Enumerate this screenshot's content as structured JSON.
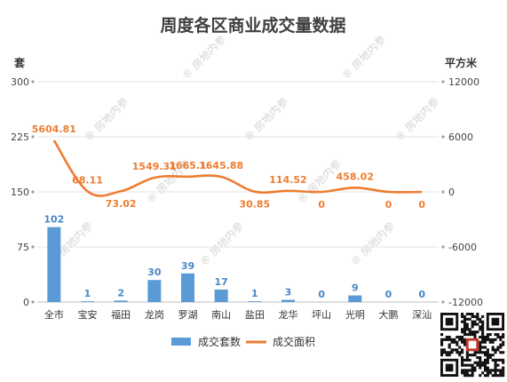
{
  "watermark": "房地内参",
  "chart_data": {
    "type": "bar+line",
    "title": "周度各区商业成交量数据",
    "categories": [
      "全市",
      "宝安",
      "福田",
      "龙岗",
      "罗湖",
      "南山",
      "盐田",
      "龙华",
      "坪山",
      "光明",
      "大鹏",
      "深汕"
    ],
    "left_axis": {
      "unit": "套",
      "ylim": [
        0,
        300
      ],
      "ticks": [
        "0",
        "75",
        "150",
        "225",
        "300"
      ]
    },
    "right_axis": {
      "unit": "平方米",
      "ylim": [
        -12000,
        12000
      ],
      "ticks": [
        "-12000",
        "-6000",
        "0",
        "6000",
        "12000"
      ]
    },
    "series": [
      {
        "name": "成交套数",
        "type": "bar",
        "axis": "left",
        "color": "#5b9bd5",
        "values": [
          102,
          1,
          2,
          30,
          39,
          17,
          1,
          3,
          0,
          9,
          0,
          0
        ],
        "labels": [
          "102",
          "1",
          "2",
          "30",
          "39",
          "17",
          "1",
          "3",
          "0",
          "9",
          "0",
          "0"
        ]
      },
      {
        "name": "成交面积",
        "type": "line",
        "axis": "right",
        "color": "#ed7d31",
        "values": [
          5604.81,
          68.11,
          73.02,
          1549.31,
          1665.1,
          1645.88,
          30.85,
          114.52,
          0,
          458.02,
          0,
          0
        ],
        "labels": [
          "5604.81",
          "68.11",
          "73.02",
          "1549.31",
          "1665.1",
          "1645.88",
          "30.85",
          "114.52",
          "0",
          "458.02",
          "0",
          "0"
        ]
      }
    ],
    "grid": true,
    "legend": "bottom"
  }
}
